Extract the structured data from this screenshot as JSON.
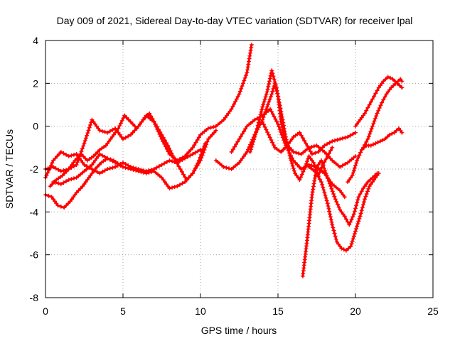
{
  "chart_data": {
    "type": "scatter",
    "title": "Day 009 of 2021, Sidereal Day-to-day VTEC variation (SDTVAR) for receiver lpal",
    "xlabel": "GPS time / hours",
    "ylabel": "SDTVAR / TECUs",
    "xlim": [
      0,
      25
    ],
    "ylim": [
      -8,
      4
    ],
    "xticks": [
      0,
      5,
      10,
      15,
      20,
      25
    ],
    "yticks": [
      -8,
      -6,
      -4,
      -2,
      0,
      2,
      4
    ],
    "grid": true,
    "marker": "plus",
    "color": "#ff0000",
    "series": [
      {
        "x": [
          0.0,
          0.5,
          1.0,
          1.5,
          2.0,
          2.5,
          3.0,
          3.5,
          4.0,
          4.5,
          5.0,
          5.5,
          6.0,
          6.5,
          7.0,
          7.5,
          8.0,
          8.5,
          9.0,
          9.5,
          10.0
        ],
        "y": [
          -2.4,
          -1.6,
          -1.2,
          -1.4,
          -1.3,
          -1.8,
          -2.0,
          -2.2,
          -2.0,
          -1.9,
          -1.7,
          -1.9,
          -2.0,
          -2.1,
          -2.0,
          -1.8,
          -1.6,
          -1.7,
          -1.5,
          -1.3,
          -1.1
        ]
      },
      {
        "x": [
          0.0,
          0.4,
          0.8,
          1.2,
          1.6,
          2.0,
          2.4,
          2.8,
          3.2,
          3.6,
          4.0,
          4.4,
          4.8
        ],
        "y": [
          -3.2,
          -3.3,
          -3.7,
          -3.8,
          -3.5,
          -3.1,
          -2.8,
          -2.4,
          -2.0,
          -1.7,
          -1.5,
          -1.6,
          -1.8
        ]
      },
      {
        "x": [
          0.0,
          0.5,
          1.0,
          1.5,
          2.0,
          2.5,
          3.0,
          3.5,
          4.0,
          4.5,
          5.0,
          5.5,
          6.0,
          6.5,
          7.0,
          7.5,
          8.0,
          8.5,
          9.0,
          9.5,
          10.0,
          10.5,
          11.0,
          11.5,
          12.0,
          12.5,
          13.0,
          13.3
        ],
        "y": [
          -2.0,
          -1.9,
          -2.1,
          -2.0,
          -1.8,
          -0.8,
          0.3,
          -0.2,
          -0.3,
          -0.1,
          -0.6,
          -0.4,
          0.0,
          0.5,
          0.2,
          -0.6,
          -1.3,
          -1.6,
          -1.4,
          -1.0,
          -0.4,
          -0.1,
          0.0,
          0.3,
          0.8,
          1.5,
          2.5,
          3.8
        ]
      },
      {
        "x": [
          0.3,
          0.7,
          1.1,
          1.5,
          1.9,
          2.3,
          2.7,
          3.1,
          3.5,
          3.9,
          4.3,
          4.7,
          5.1,
          5.5,
          5.9,
          6.3,
          6.7,
          7.1,
          7.5,
          7.9,
          8.3,
          8.7,
          9.1,
          9.5,
          9.9,
          10.3
        ],
        "y": [
          -2.8,
          -2.5,
          -2.3,
          -2.0,
          -1.6,
          -1.3,
          -1.6,
          -1.4,
          -1.1,
          -0.9,
          -0.5,
          -0.1,
          0.5,
          0.2,
          -0.1,
          0.3,
          0.6,
          0.1,
          -0.4,
          -0.9,
          -1.5,
          -2.0,
          -2.5,
          -2.2,
          -1.6,
          -0.8
        ]
      },
      {
        "x": [
          0.5,
          1.0,
          1.5,
          2.0,
          2.5,
          3.0,
          3.5,
          4.0,
          4.5,
          5.0,
          5.5,
          6.0,
          6.5,
          7.0,
          7.5,
          8.0,
          8.5,
          9.0,
          9.5,
          10.0,
          10.5,
          11.0
        ],
        "y": [
          -2.6,
          -2.7,
          -2.5,
          -2.4,
          -2.1,
          -1.8,
          -1.3,
          -1.5,
          -1.7,
          -1.9,
          -2.0,
          -2.1,
          -2.2,
          -2.1,
          -2.4,
          -2.9,
          -2.8,
          -2.6,
          -2.2,
          -1.6,
          -0.6,
          -0.2
        ]
      },
      {
        "x": [
          11.0,
          11.5,
          12.0,
          12.5,
          13.0,
          13.5,
          14.0,
          14.3,
          14.6,
          14.8,
          15.0,
          15.2,
          15.5,
          16.0,
          16.5,
          17.0,
          17.5,
          18.0,
          18.5,
          19.0,
          19.5,
          20.0
        ],
        "y": [
          -1.6,
          -1.9,
          -2.0,
          -1.7,
          -1.2,
          -0.4,
          0.3,
          0.9,
          1.5,
          2.0,
          1.4,
          0.2,
          -0.8,
          -1.2,
          -1.3,
          -1.0,
          -0.9,
          -1.2,
          -1.6,
          -1.9,
          -1.7,
          -1.4
        ]
      },
      {
        "x": [
          13.2,
          13.5,
          13.8,
          14.0,
          14.3,
          14.6,
          14.9,
          15.2,
          15.5,
          15.8,
          16.1,
          16.4,
          16.7,
          17.0,
          17.3,
          17.6,
          17.9,
          18.2,
          18.5
        ],
        "y": [
          -1.2,
          -0.5,
          0.3,
          0.9,
          1.6,
          2.6,
          1.8,
          0.7,
          -0.5,
          -1.5,
          -2.2,
          -2.5,
          -2.0,
          -1.4,
          -1.7,
          -2.3,
          -1.8,
          -1.4,
          -1.0
        ]
      },
      {
        "x": [
          12.0,
          12.5,
          13.0,
          13.5,
          14.0,
          14.5,
          15.0,
          15.5,
          16.0,
          16.5,
          17.0,
          17.5,
          18.0,
          18.5,
          19.0,
          19.3
        ],
        "y": [
          -1.2,
          -0.6,
          0.0,
          0.3,
          0.5,
          0.8,
          0.1,
          -0.9,
          -1.6,
          -2.0,
          -1.8,
          -1.9,
          -2.2,
          -2.7,
          -3.0,
          -3.3
        ]
      },
      {
        "x": [
          14.0,
          14.4,
          14.8,
          15.2,
          15.6,
          16.0,
          16.4,
          16.8,
          17.2,
          17.6,
          18.0,
          18.5,
          19.0,
          19.5,
          20.0
        ],
        "y": [
          0.2,
          -0.4,
          -1.0,
          -1.2,
          -0.9,
          -0.5,
          -0.3,
          -0.8,
          -1.3,
          -1.2,
          -0.9,
          -0.7,
          -0.6,
          -0.5,
          -0.3
        ]
      },
      {
        "x": [
          16.6,
          16.9,
          17.2,
          17.5,
          17.8,
          18.1,
          18.4,
          18.7,
          19.0,
          19.3,
          19.6,
          19.9,
          20.2,
          20.5,
          20.8,
          21.1,
          21.4
        ],
        "y": [
          -7.0,
          -5.2,
          -3.2,
          -1.9,
          -1.6,
          -2.2,
          -2.8,
          -3.4,
          -3.9,
          -4.2,
          -4.6,
          -4.1,
          -3.3,
          -2.9,
          -2.6,
          -2.4,
          -2.2
        ]
      },
      {
        "x": [
          17.0,
          17.4,
          17.8,
          18.2,
          18.5,
          18.8,
          19.1,
          19.4,
          19.7,
          20.0,
          20.3,
          20.6,
          20.9,
          21.2,
          21.5
        ],
        "y": [
          -1.9,
          -2.1,
          -2.6,
          -3.6,
          -4.6,
          -5.4,
          -5.7,
          -5.8,
          -5.6,
          -4.9,
          -4.2,
          -3.4,
          -2.8,
          -2.5,
          -2.2
        ]
      },
      {
        "x": [
          19.5,
          19.8,
          20.1,
          20.4,
          20.7,
          21.0,
          21.3,
          21.6,
          21.9,
          22.2,
          22.5,
          22.8,
          23.0
        ],
        "y": [
          -2.6,
          -2.3,
          -1.6,
          -1.1,
          -0.9,
          -0.9,
          -0.8,
          -0.7,
          -0.6,
          -0.4,
          -0.3,
          -0.1,
          -0.3
        ]
      },
      {
        "x": [
          20.0,
          20.3,
          20.6,
          20.9,
          21.2,
          21.5,
          21.8,
          22.1,
          22.4,
          22.7,
          23.0
        ],
        "y": [
          0.0,
          0.3,
          0.6,
          1.0,
          1.4,
          1.8,
          2.1,
          2.3,
          2.2,
          2.0,
          1.8
        ]
      },
      {
        "x": [
          20.5,
          20.8,
          21.1,
          21.4,
          21.7,
          22.0,
          22.3,
          22.6,
          22.9,
          23.0
        ],
        "y": [
          -1.0,
          -0.6,
          0.0,
          0.6,
          1.1,
          1.5,
          1.8,
          2.0,
          2.2,
          2.1
        ]
      }
    ]
  }
}
